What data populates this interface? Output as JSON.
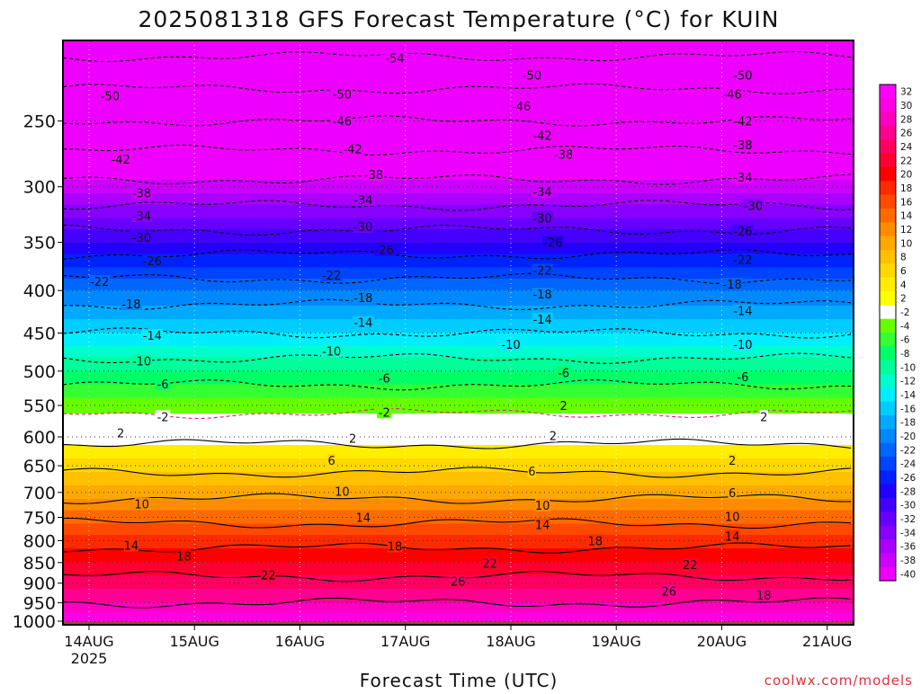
{
  "chart_data": {
    "type": "heatmap",
    "title": "2025081318 GFS Forecast Temperature (°C) for KUIN",
    "xlabel": "Forecast Time (UTC)",
    "ylabel": "",
    "watermark": "coolwx.com/models",
    "x_ticks": [
      "14AUG",
      "15AUG",
      "16AUG",
      "17AUG",
      "18AUG",
      "19AUG",
      "20AUG",
      "21AUG"
    ],
    "x_tick_sub": "2025",
    "y_axis": {
      "ticks": [
        250,
        300,
        350,
        400,
        450,
        500,
        550,
        600,
        650,
        700,
        750,
        800,
        850,
        900,
        950,
        1000
      ],
      "range": [
        200,
        1010
      ],
      "scale": "log",
      "inverted": true
    },
    "x_range_days": [
      0,
      7.5
    ],
    "surface_color": "#9c4a2a",
    "colorbar": [
      {
        "label": "32",
        "color": "#ff00ff"
      },
      {
        "label": "30",
        "color": "#ff00e0"
      },
      {
        "label": "28",
        "color": "#ff00c0"
      },
      {
        "label": "26",
        "color": "#ff0090"
      },
      {
        "label": "24",
        "color": "#ff0060"
      },
      {
        "label": "22",
        "color": "#ff0030"
      },
      {
        "label": "20",
        "color": "#ff0000"
      },
      {
        "label": "18",
        "color": "#ff2a00"
      },
      {
        "label": "16",
        "color": "#ff4a00"
      },
      {
        "label": "14",
        "color": "#ff6a00"
      },
      {
        "label": "12",
        "color": "#ff8c00"
      },
      {
        "label": "10",
        "color": "#ffa800"
      },
      {
        "label": "8",
        "color": "#ffc000"
      },
      {
        "label": "6",
        "color": "#ffd800"
      },
      {
        "label": "4",
        "color": "#ffee00"
      },
      {
        "label": "2",
        "color": "#ffff00"
      },
      {
        "label": "-2",
        "color": "#ffffff"
      },
      {
        "label": "-4",
        "color": "#66ff00"
      },
      {
        "label": "-6",
        "color": "#33ff33"
      },
      {
        "label": "-8",
        "color": "#00ff66"
      },
      {
        "label": "-10",
        "color": "#00ff99"
      },
      {
        "label": "-12",
        "color": "#00ffcc"
      },
      {
        "label": "-14",
        "color": "#00eeff"
      },
      {
        "label": "-16",
        "color": "#00ccff"
      },
      {
        "label": "-18",
        "color": "#00aaff"
      },
      {
        "label": "-20",
        "color": "#0088ff"
      },
      {
        "label": "-22",
        "color": "#0066ff"
      },
      {
        "label": "-24",
        "color": "#0044ff"
      },
      {
        "label": "-26",
        "color": "#0022ff"
      },
      {
        "label": "-28",
        "color": "#2200ff"
      },
      {
        "label": "-30",
        "color": "#4400ff"
      },
      {
        "label": "-32",
        "color": "#6600ff"
      },
      {
        "label": "-34",
        "color": "#8800ff"
      },
      {
        "label": "-36",
        "color": "#aa00ff"
      },
      {
        "label": "-38",
        "color": "#cc00ff"
      },
      {
        "label": "-40",
        "color": "#ee00ff"
      }
    ],
    "temperature_profile": [
      {
        "p": 200,
        "t": -56
      },
      {
        "p": 250,
        "t": -46
      },
      {
        "p": 300,
        "t": -37
      },
      {
        "p": 350,
        "t": -28
      },
      {
        "p": 400,
        "t": -20
      },
      {
        "p": 450,
        "t": -14
      },
      {
        "p": 500,
        "t": -8
      },
      {
        "p": 550,
        "t": -3
      },
      {
        "p": 600,
        "t": 1
      },
      {
        "p": 650,
        "t": 5
      },
      {
        "p": 700,
        "t": 9
      },
      {
        "p": 750,
        "t": 13
      },
      {
        "p": 800,
        "t": 17
      },
      {
        "p": 850,
        "t": 20
      },
      {
        "p": 900,
        "t": 23
      },
      {
        "p": 950,
        "t": 26
      },
      {
        "p": 1000,
        "t": 30
      }
    ],
    "contours": [
      {
        "label": "-54",
        "p": 210,
        "day": 2.9
      },
      {
        "label": "-50",
        "p": 220,
        "day": 4.2
      },
      {
        "label": "-50",
        "p": 220,
        "day": 6.2
      },
      {
        "label": "-50",
        "p": 233,
        "day": 0.2
      },
      {
        "label": "-50",
        "p": 232,
        "day": 2.4
      },
      {
        "label": "-46",
        "p": 232,
        "day": 6.1
      },
      {
        "label": "-46",
        "p": 250,
        "day": 2.4
      },
      {
        "label": "-46",
        "p": 240,
        "day": 4.1
      },
      {
        "label": "-42",
        "p": 250,
        "day": 6.2
      },
      {
        "label": "-42",
        "p": 270,
        "day": 2.5
      },
      {
        "label": "-42",
        "p": 260,
        "day": 4.3
      },
      {
        "label": "-42",
        "p": 278,
        "day": 0.3
      },
      {
        "label": "-38",
        "p": 305,
        "day": 0.5
      },
      {
        "label": "-38",
        "p": 290,
        "day": 2.7
      },
      {
        "label": "-38",
        "p": 274,
        "day": 4.5
      },
      {
        "label": "-38",
        "p": 267,
        "day": 6.2
      },
      {
        "label": "-34",
        "p": 325,
        "day": 0.5
      },
      {
        "label": "-34",
        "p": 311,
        "day": 2.6
      },
      {
        "label": "-34",
        "p": 304,
        "day": 4.3
      },
      {
        "label": "-34",
        "p": 292,
        "day": 6.2
      },
      {
        "label": "-30",
        "p": 345,
        "day": 0.5
      },
      {
        "label": "-30",
        "p": 335,
        "day": 2.6
      },
      {
        "label": "-30",
        "p": 327,
        "day": 4.3
      },
      {
        "label": "-30",
        "p": 316,
        "day": 6.3
      },
      {
        "label": "-26",
        "p": 368,
        "day": 0.6
      },
      {
        "label": "-26",
        "p": 357,
        "day": 2.8
      },
      {
        "label": "-26",
        "p": 350,
        "day": 4.4
      },
      {
        "label": "-26",
        "p": 339,
        "day": 6.2
      },
      {
        "label": "-22",
        "p": 390,
        "day": 0.1
      },
      {
        "label": "-22",
        "p": 383,
        "day": 2.3
      },
      {
        "label": "-22",
        "p": 378,
        "day": 4.3
      },
      {
        "label": "-22",
        "p": 367,
        "day": 6.2
      },
      {
        "label": "-18",
        "p": 415,
        "day": 0.4
      },
      {
        "label": "-18",
        "p": 408,
        "day": 2.6
      },
      {
        "label": "-18",
        "p": 404,
        "day": 4.3
      },
      {
        "label": "-18",
        "p": 393,
        "day": 6.1
      },
      {
        "label": "-14",
        "p": 453,
        "day": 0.6
      },
      {
        "label": "-14",
        "p": 437,
        "day": 2.6
      },
      {
        "label": "-14",
        "p": 433,
        "day": 4.3
      },
      {
        "label": "-14",
        "p": 423,
        "day": 6.2
      },
      {
        "label": "-10",
        "p": 486,
        "day": 0.5
      },
      {
        "label": "-10",
        "p": 473,
        "day": 2.3
      },
      {
        "label": "-10",
        "p": 464,
        "day": 4.0
      },
      {
        "label": "-10",
        "p": 464,
        "day": 6.2
      },
      {
        "label": "-6",
        "p": 518,
        "day": 0.7
      },
      {
        "label": "-6",
        "p": 510,
        "day": 2.8
      },
      {
        "label": "-6",
        "p": 502,
        "day": 4.5
      },
      {
        "label": "-6",
        "p": 508,
        "day": 6.2
      },
      {
        "label": "-2",
        "p": 567,
        "day": 0.7
      },
      {
        "label": "-2",
        "p": 560,
        "day": 2.8
      },
      {
        "label": "2",
        "p": 550,
        "day": 4.5
      },
      {
        "label": "2",
        "p": 567,
        "day": 6.4
      },
      {
        "label": "2",
        "p": 593,
        "day": 0.3
      },
      {
        "label": "2",
        "p": 602,
        "day": 2.5
      },
      {
        "label": "2",
        "p": 598,
        "day": 4.4
      },
      {
        "label": "2",
        "p": 640,
        "day": 6.1
      },
      {
        "label": "6",
        "p": 640,
        "day": 2.3
      },
      {
        "label": "6",
        "p": 660,
        "day": 4.2
      },
      {
        "label": "6",
        "p": 700,
        "day": 6.1
      },
      {
        "label": "10",
        "p": 722,
        "day": 0.5
      },
      {
        "label": "10",
        "p": 698,
        "day": 2.4
      },
      {
        "label": "10",
        "p": 725,
        "day": 4.3
      },
      {
        "label": "10",
        "p": 748,
        "day": 6.1
      },
      {
        "label": "14",
        "p": 810,
        "day": 0.4
      },
      {
        "label": "14",
        "p": 750,
        "day": 2.6
      },
      {
        "label": "14",
        "p": 765,
        "day": 4.3
      },
      {
        "label": "14",
        "p": 790,
        "day": 6.1
      },
      {
        "label": "18",
        "p": 835,
        "day": 0.9
      },
      {
        "label": "18",
        "p": 812,
        "day": 2.9
      },
      {
        "label": "18",
        "p": 800,
        "day": 4.8
      },
      {
        "label": "18",
        "p": 930,
        "day": 6.4
      },
      {
        "label": "22",
        "p": 880,
        "day": 1.7
      },
      {
        "label": "22",
        "p": 852,
        "day": 3.8
      },
      {
        "label": "22",
        "p": 855,
        "day": 5.7
      },
      {
        "label": "26",
        "p": 895,
        "day": 3.5
      },
      {
        "label": "26",
        "p": 920,
        "day": 5.5
      }
    ]
  }
}
